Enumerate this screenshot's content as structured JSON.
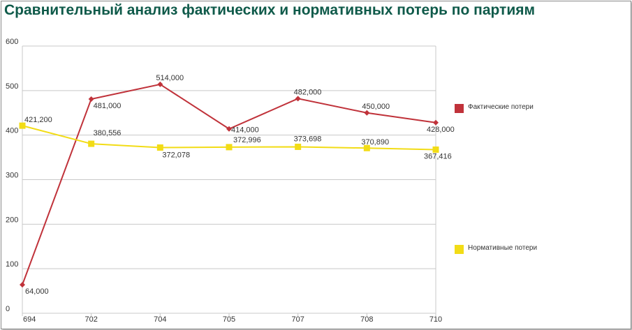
{
  "title": "Сравнительный анализ фактических и нормативных потерь по партиям",
  "chart_data": {
    "type": "line",
    "title": "Сравнительный анализ фактических и нормативных потерь по партиям",
    "categories": [
      "694",
      "702",
      "704",
      "705",
      "707",
      "708",
      "710"
    ],
    "ylim": [
      0,
      600
    ],
    "yticks": [
      "0",
      "100",
      "200",
      "300",
      "400",
      "500",
      "600"
    ],
    "grid": true,
    "legend_position": "right",
    "series": [
      {
        "name": "Фактические потери",
        "color": "#c0323a",
        "marker": "diamond",
        "values": [
          64,
          481,
          514,
          414,
          482,
          450,
          428
        ],
        "labels": [
          "64,000",
          "481,000",
          "514,000",
          "414,000",
          "482,000",
          "450,000",
          "428,000"
        ]
      },
      {
        "name": "Нормативные потери",
        "color": "#f2dc16",
        "marker": "square",
        "values": [
          421.2,
          380.556,
          372.078,
          372.996,
          373.698,
          370.89,
          367.416
        ],
        "labels": [
          "421,200",
          "380,556",
          "372,078",
          "372,996",
          "373,698",
          "370,890",
          "367,416"
        ]
      }
    ]
  }
}
